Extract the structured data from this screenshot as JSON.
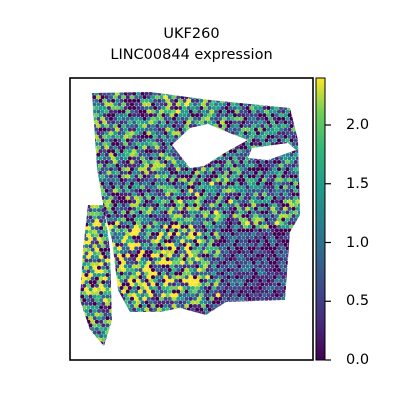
{
  "title": "UKF260",
  "subtitle": "LINC00844 expression",
  "chart_data": {
    "type": "scatter",
    "title": "UKF260",
    "subtitle": "LINC00844 expression",
    "xlabel": "",
    "ylabel": "",
    "grid": false,
    "legend": "none",
    "marker": "hexagon",
    "description_of_values": "spatial spots colored by LINC00844 expression",
    "colorbar": {
      "colormap": "viridis",
      "range": [
        0.0,
        2.4
      ],
      "ticks": [
        0.0,
        0.5,
        1.0,
        1.5,
        2.0
      ],
      "tick_labels": [
        "0.0",
        "0.5",
        "1.0",
        "1.5",
        "2.0"
      ]
    },
    "value_range_shown": [
      0.0,
      2.4
    ]
  }
}
